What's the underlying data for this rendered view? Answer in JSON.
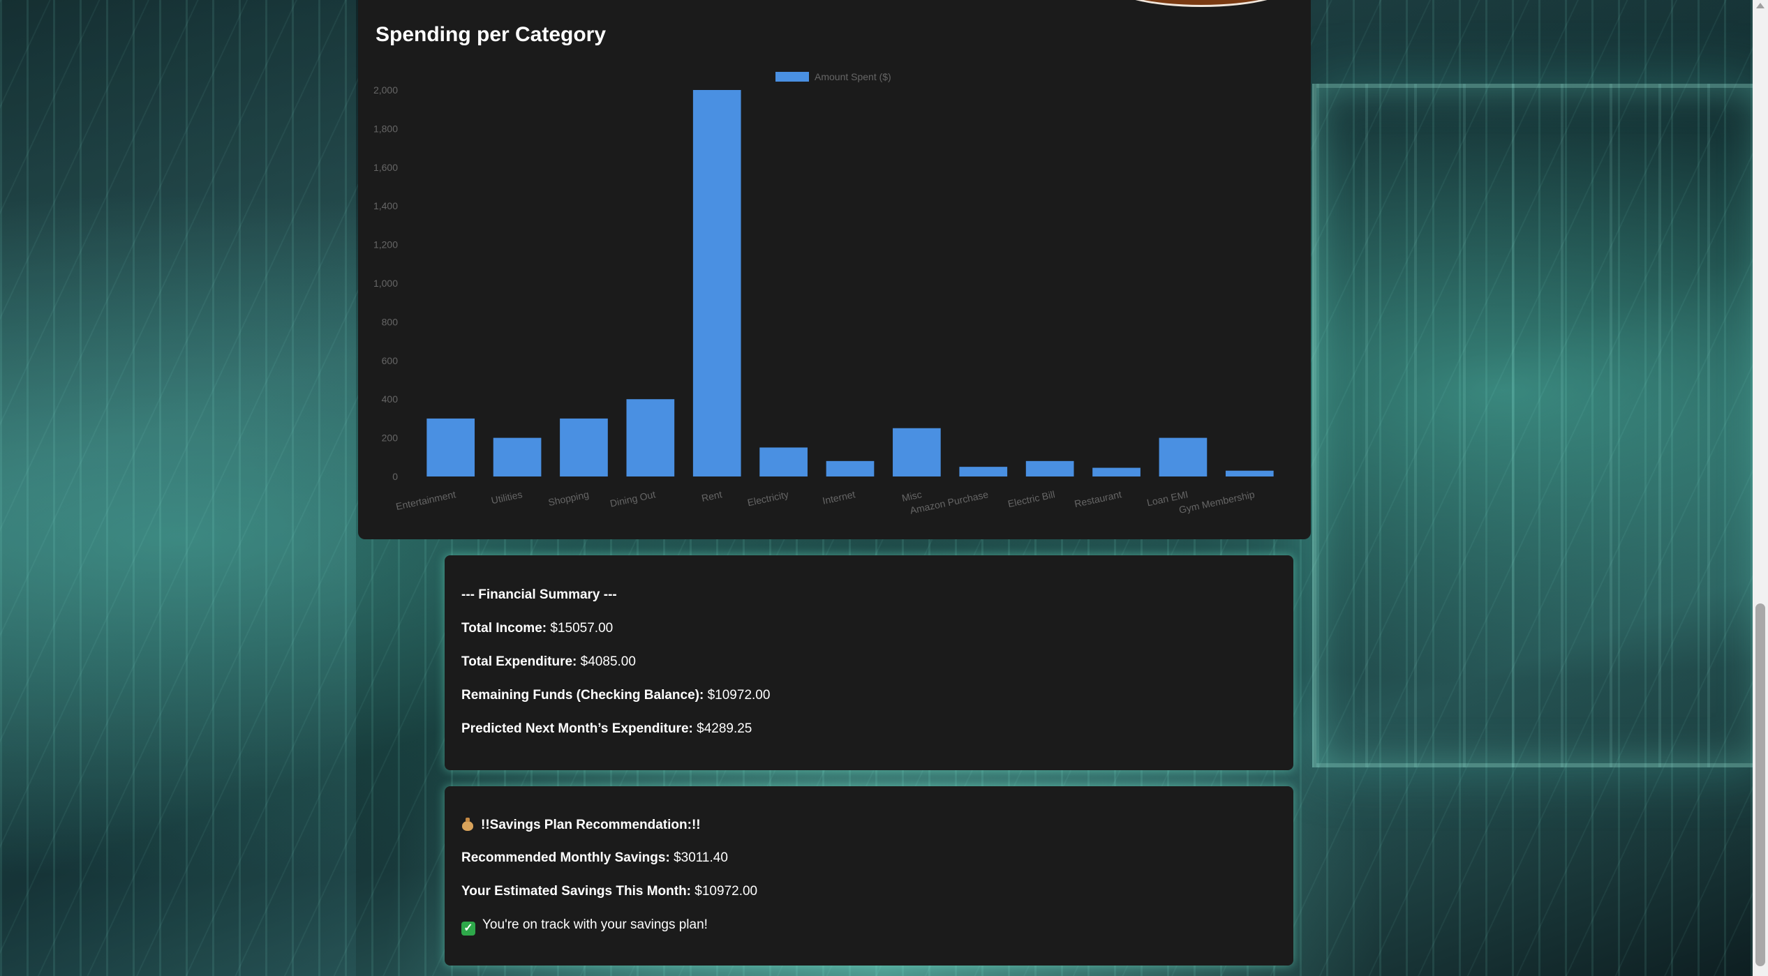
{
  "chart_section": {
    "title": "Spending per Category"
  },
  "chart_data": {
    "type": "bar",
    "legend": {
      "label": "Amount Spent ($)",
      "position": "top"
    },
    "categories": [
      "Entertainment",
      "Utilities",
      "Shopping",
      "Dining Out",
      "Rent",
      "Electricity",
      "Internet",
      "Misc",
      "Amazon Purchase",
      "Electric Bill",
      "Restaurant",
      "Loan EMI",
      "Gym Membership"
    ],
    "values": [
      300,
      200,
      300,
      400,
      2000,
      150,
      80,
      250,
      50,
      80,
      45,
      200,
      30
    ],
    "ylim": [
      0,
      2000
    ],
    "yticks": [
      "0",
      "200",
      "400",
      "600",
      "800",
      "1,000",
      "1,200",
      "1,400",
      "1,600",
      "1,800",
      "2,000"
    ],
    "bar_color": "#4a90e2",
    "grid": false
  },
  "summary": {
    "heading": "--- Financial Summary ---",
    "income_label": "Total Income:",
    "income_value": "$15057.00",
    "expenditure_label": "Total Expenditure:",
    "expenditure_value": "$4085.00",
    "remaining_label": "Remaining Funds (Checking Balance):",
    "remaining_value": "$10972.00",
    "predicted_label": "Predicted Next Month’s Expenditure:",
    "predicted_value": "$4289.25"
  },
  "savings": {
    "heading_icon": "money-bag-icon",
    "heading": "!!Savings Plan Recommendation:!!",
    "recommended_label": "Recommended Monthly Savings:",
    "recommended_value": "$3011.40",
    "estimated_label": "Your Estimated Savings This Month:",
    "estimated_value": "$10972.00",
    "status_icon": "check-mark-icon",
    "status_text": "You're on track with your savings plan!"
  },
  "colors": {
    "card_bg": "#1b1b1b",
    "bar": "#4a90e2",
    "text": "#ffffff",
    "axis_text": "#666666",
    "check": "#2ea84a"
  }
}
